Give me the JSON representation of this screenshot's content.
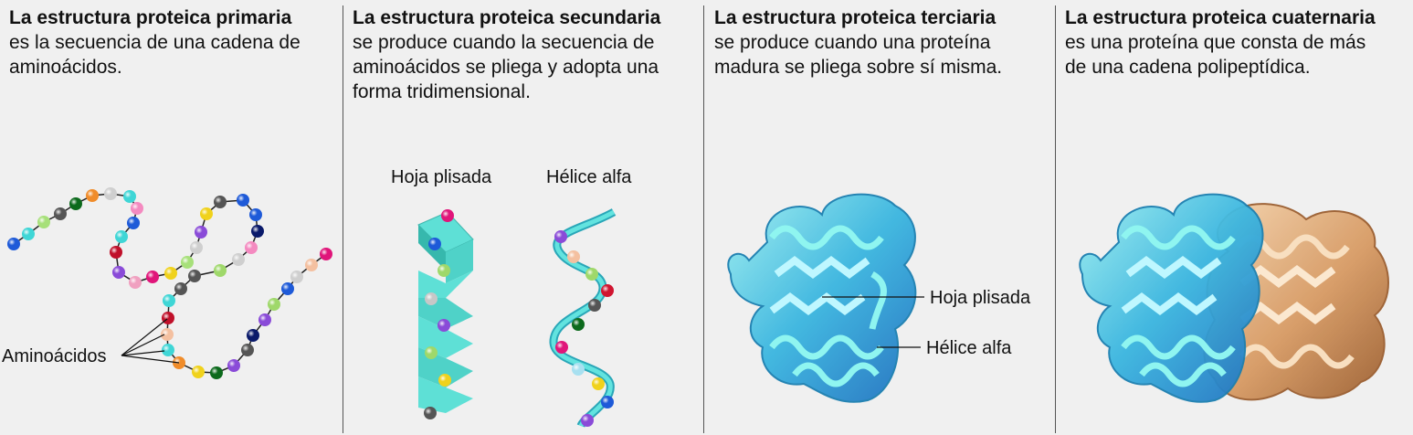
{
  "panels": [
    {
      "title": "La estructura proteica primaria",
      "body": [
        "es la secuencia de una cadena de",
        "aminoácidos."
      ]
    },
    {
      "title": "La estructura proteica secundaria",
      "body": [
        "se produce cuando la secuencia de",
        "aminoácidos se pliega y adopta una",
        "forma tridimensional."
      ]
    },
    {
      "title": "La estructura proteica terciaria",
      "body": [
        "se produce cuando una proteína",
        "madura se pliega sobre sí misma."
      ]
    },
    {
      "title": "La estructura proteica cuaternaria",
      "body": [
        "es una proteína que consta de más",
        "de una cadena polipeptídica."
      ]
    }
  ],
  "labels": {
    "aminoacids": "Aminoácidos",
    "pleated_sheet": "Hoja plisada",
    "alpha_helix": "Hélice alfa",
    "tertiary_sheet": "Hoja plisada",
    "tertiary_helix": "Hélice alfa"
  },
  "colors": {
    "background": "#f0f0f0",
    "protein_blue": "#3aa6d8",
    "protein_cyan": "#5fe0d8",
    "protein_brown": "#c98a55"
  }
}
